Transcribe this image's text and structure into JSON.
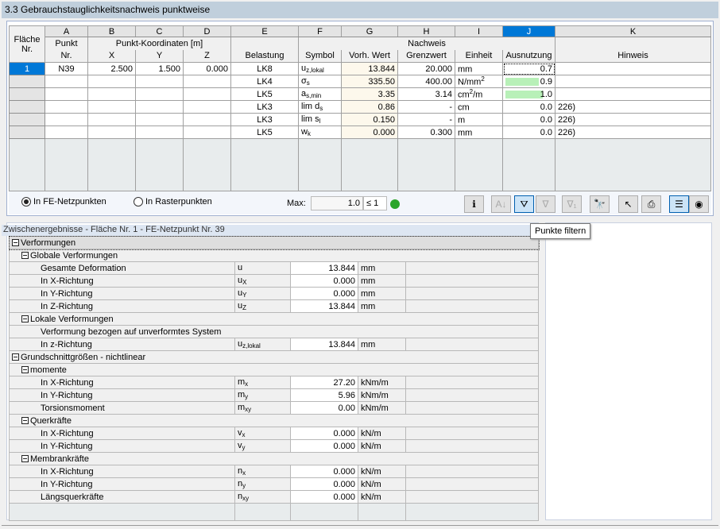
{
  "title": "3.3 Gebrauchstauglichkeitsnachweis punktweise",
  "top_table": {
    "letters": [
      "A",
      "B",
      "C",
      "D",
      "E",
      "F",
      "G",
      "H",
      "I",
      "J",
      "K"
    ],
    "selected_letter": "J",
    "headers": {
      "flaeche": "Fläche",
      "nr": "Nr.",
      "punkt": "Punkt",
      "punkt_nr": "Nr.",
      "koord": "Punkt-Koordinaten [m]",
      "x": "X",
      "y": "Y",
      "z": "Z",
      "belastung": "Belastung",
      "symbol": "Symbol",
      "nachweis": "Nachweis",
      "vorh": "Vorh. Wert",
      "grenz": "Grenzwert",
      "einheit": "Einheit",
      "ausnutzung": "Ausnutzung",
      "hinweis": "Hinweis"
    },
    "rows": [
      {
        "flaeche": "1",
        "punkt": "N39",
        "x": "2.500",
        "y": "1.500",
        "z": "0.000",
        "belastung": "LK8",
        "sym": "u",
        "sub": "z,lokal",
        "vorh": "13.844",
        "grenz": "20.000",
        "einheit": "mm",
        "sup": "",
        "einheit2": "",
        "ausnutzung": "0.7",
        "ratio": 0.7,
        "bar": false,
        "hinweis": ""
      },
      {
        "flaeche": "",
        "punkt": "",
        "x": "",
        "y": "",
        "z": "",
        "belastung": "LK4",
        "sym": "σ",
        "sub": "s",
        "vorh": "335.50",
        "grenz": "400.00",
        "einheit": "N/mm",
        "sup": "2",
        "einheit2": "",
        "ausnutzung": "0.9",
        "ratio": 0.84,
        "bar": true,
        "hinweis": ""
      },
      {
        "flaeche": "",
        "punkt": "",
        "x": "",
        "y": "",
        "z": "",
        "belastung": "LK5",
        "sym": "a",
        "sub": "s,min",
        "vorh": "3.35",
        "grenz": "3.14",
        "einheit": "cm",
        "sup": "2",
        "einheit2": "/m",
        "ausnutzung": "1.0",
        "ratio": 0.94,
        "bar": true,
        "hinweis": ""
      },
      {
        "flaeche": "",
        "punkt": "",
        "x": "",
        "y": "",
        "z": "",
        "belastung": "LK3",
        "sym": "lim d",
        "sub": "s",
        "vorh": "0.86",
        "grenz": "-",
        "einheit": "cm",
        "sup": "",
        "einheit2": "",
        "ausnutzung": "0.0",
        "ratio": 0,
        "bar": false,
        "hinweis": "226)"
      },
      {
        "flaeche": "",
        "punkt": "",
        "x": "",
        "y": "",
        "z": "",
        "belastung": "LK3",
        "sym": "lim s",
        "sub": "l",
        "vorh": "0.150",
        "grenz": "-",
        "einheit": "m",
        "sup": "",
        "einheit2": "",
        "ausnutzung": "0.0",
        "ratio": 0,
        "bar": false,
        "hinweis": "226)"
      },
      {
        "flaeche": "",
        "punkt": "",
        "x": "",
        "y": "",
        "z": "",
        "belastung": "LK5",
        "sym": "w",
        "sub": "k",
        "vorh": "0.000",
        "grenz": "0.300",
        "einheit": "mm",
        "sup": "",
        "einheit2": "",
        "ausnutzung": "0.0",
        "ratio": 0,
        "bar": false,
        "hinweis": "226)"
      }
    ]
  },
  "options": {
    "radio1": "In FE-Netzpunkten",
    "radio2": "In Rasterpunkten",
    "selected": "radio1",
    "max_label": "Max:",
    "max_value": "1.0",
    "max_cond": "≤ 1"
  },
  "toolbar": {
    "icons": [
      "info-icon",
      "sort-icon",
      "filter-points-icon",
      "filter-icon",
      "filter-gt1-icon",
      "find-icon",
      "pick-icon",
      "print-icon",
      "color-bars-icon",
      "view-icon"
    ],
    "tooltip": "Punkte filtern"
  },
  "lower": {
    "header": "Zwischenergebnisse  -  Fläche Nr. 1 - FE-Netzpunkt Nr. 39",
    "rows": [
      {
        "level": 0,
        "group": true,
        "label": "Verformungen",
        "selected": true
      },
      {
        "level": 1,
        "group": true,
        "label": "Globale Verformungen"
      },
      {
        "level": 2,
        "label": "Gesamte Deformation",
        "sym": "u",
        "sub": "",
        "value": "13.844",
        "unit": "mm"
      },
      {
        "level": 2,
        "label": "In X-Richtung",
        "sym": "u",
        "sub": "X",
        "value": "0.000",
        "unit": "mm"
      },
      {
        "level": 2,
        "label": "In Y-Richtung",
        "sym": "u",
        "sub": "Y",
        "value": "0.000",
        "unit": "mm"
      },
      {
        "level": 2,
        "label": "In Z-Richtung",
        "sym": "u",
        "sub": "Z",
        "value": "13.844",
        "unit": "mm"
      },
      {
        "level": 1,
        "group": true,
        "label": "Lokale Verformungen"
      },
      {
        "level": 2,
        "group": true,
        "nobox": true,
        "label": "Verformung bezogen auf unverformtes System"
      },
      {
        "level": 2,
        "label": "In z-Richtung",
        "sym": "u",
        "sub": "z,lokal",
        "value": "13.844",
        "unit": "mm"
      },
      {
        "level": 0,
        "group": true,
        "label": "Grundschnittgrößen - nichtlinear"
      },
      {
        "level": 1,
        "group": true,
        "label": "momente"
      },
      {
        "level": 2,
        "label": "In X-Richtung",
        "sym": "m",
        "sub": "x",
        "value": "27.20",
        "unit": "kNm/m"
      },
      {
        "level": 2,
        "label": "In Y-Richtung",
        "sym": "m",
        "sub": "y",
        "value": "5.96",
        "unit": "kNm/m"
      },
      {
        "level": 2,
        "label": "Torsionsmoment",
        "sym": "m",
        "sub": "xy",
        "value": "0.00",
        "unit": "kNm/m"
      },
      {
        "level": 1,
        "group": true,
        "label": "Querkräfte"
      },
      {
        "level": 2,
        "label": "In X-Richtung",
        "sym": "v",
        "sub": "x",
        "value": "0.000",
        "unit": "kN/m"
      },
      {
        "level": 2,
        "label": "In Y-Richtung",
        "sym": "v",
        "sub": "y",
        "value": "0.000",
        "unit": "kN/m"
      },
      {
        "level": 1,
        "group": true,
        "label": "Membrankräfte"
      },
      {
        "level": 2,
        "label": "In X-Richtung",
        "sym": "n",
        "sub": "x",
        "value": "0.000",
        "unit": "kN/m"
      },
      {
        "level": 2,
        "label": "In Y-Richtung",
        "sym": "n",
        "sub": "y",
        "value": "0.000",
        "unit": "kN/m"
      },
      {
        "level": 2,
        "label": "Längsquerkräfte",
        "sym": "n",
        "sub": "xy",
        "value": "0.000",
        "unit": "kN/m"
      }
    ]
  }
}
